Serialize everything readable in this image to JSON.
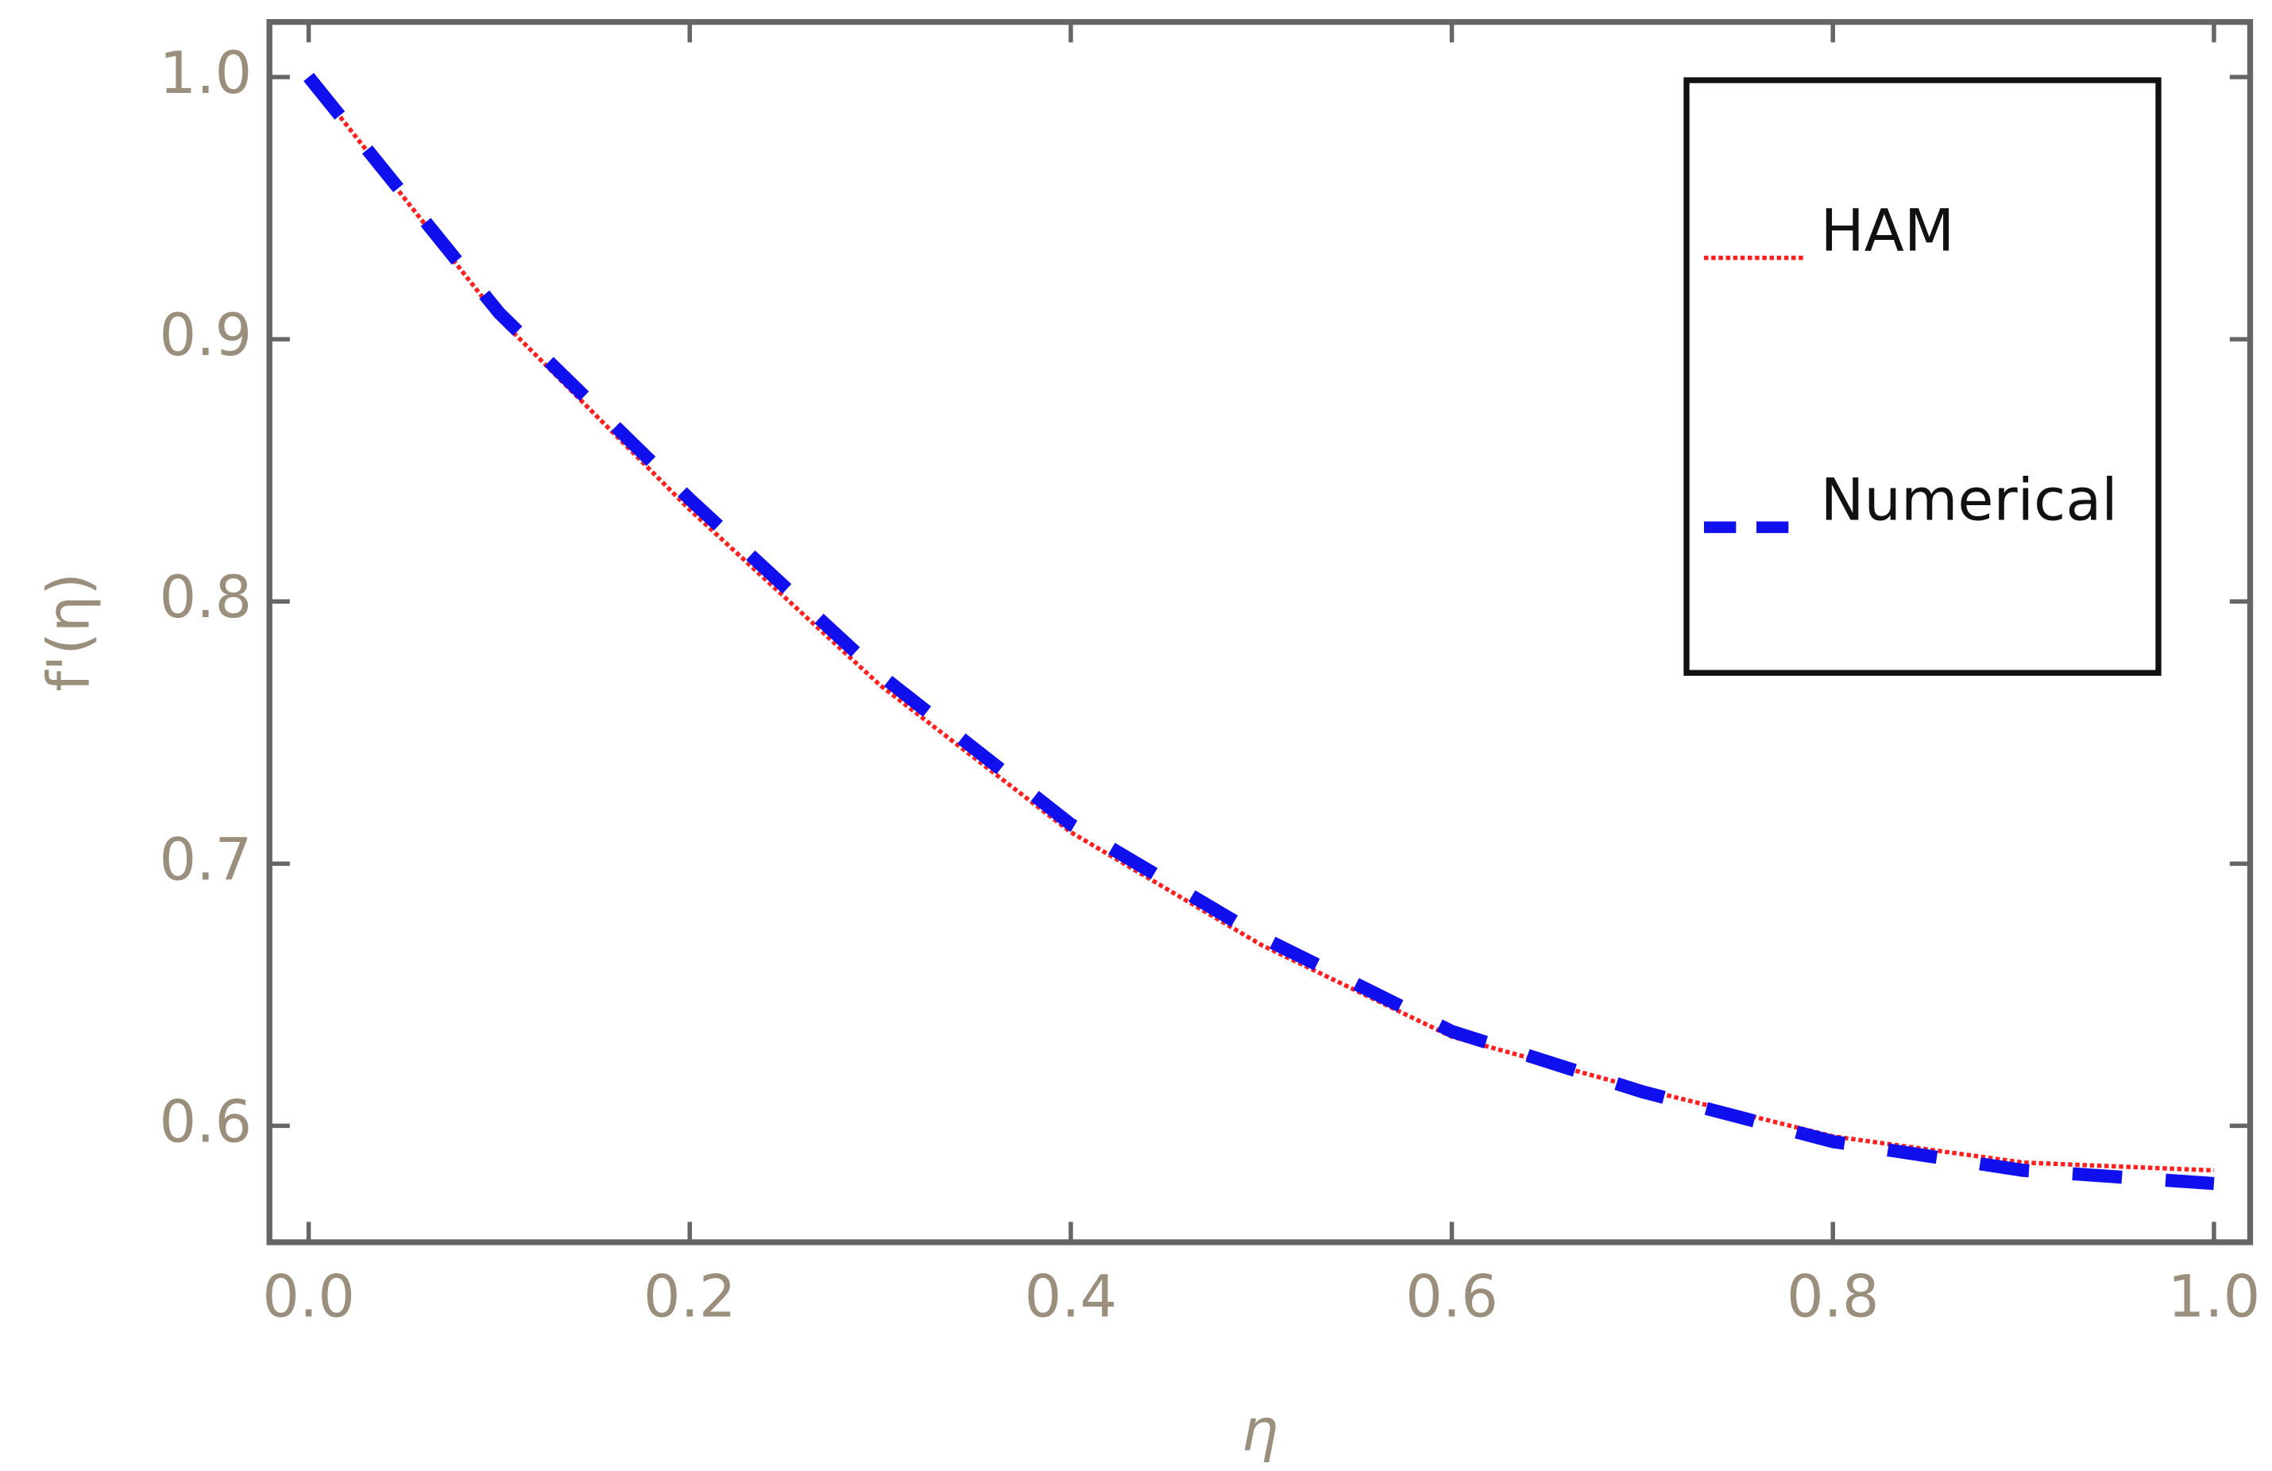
{
  "chart_data": {
    "type": "line",
    "xlabel": "η",
    "ylabel": "f'(η)",
    "x": [
      0,
      0.1,
      0.2,
      0.3,
      0.4,
      0.5,
      0.6,
      0.7,
      0.8,
      0.9,
      1.0
    ],
    "series": [
      {
        "name": "HAM",
        "color": "#ff2020",
        "style": "dotted",
        "values": [
          1.0,
          0.908,
          0.835,
          0.768,
          0.712,
          0.669,
          0.634,
          0.614,
          0.596,
          0.586,
          0.583
        ]
      },
      {
        "name": "Numerical",
        "color": "#1010ee",
        "style": "dashed",
        "values": [
          1.0,
          0.91,
          0.839,
          0.772,
          0.715,
          0.672,
          0.636,
          0.613,
          0.594,
          0.583,
          0.578
        ]
      }
    ],
    "xlim": [
      -0.0206,
      1.019
    ],
    "ylim": [
      0.5556,
      1.021
    ],
    "xticks": [
      {
        "value": 0,
        "label": "0.0"
      },
      0.2,
      0.4,
      0.6,
      0.8,
      {
        "value": 1,
        "label": "1.0"
      }
    ],
    "yticks": [
      0.6,
      0.7,
      0.8,
      0.9,
      {
        "value": 1,
        "label": "1.0"
      }
    ],
    "grid": false,
    "legend": "upper right"
  }
}
